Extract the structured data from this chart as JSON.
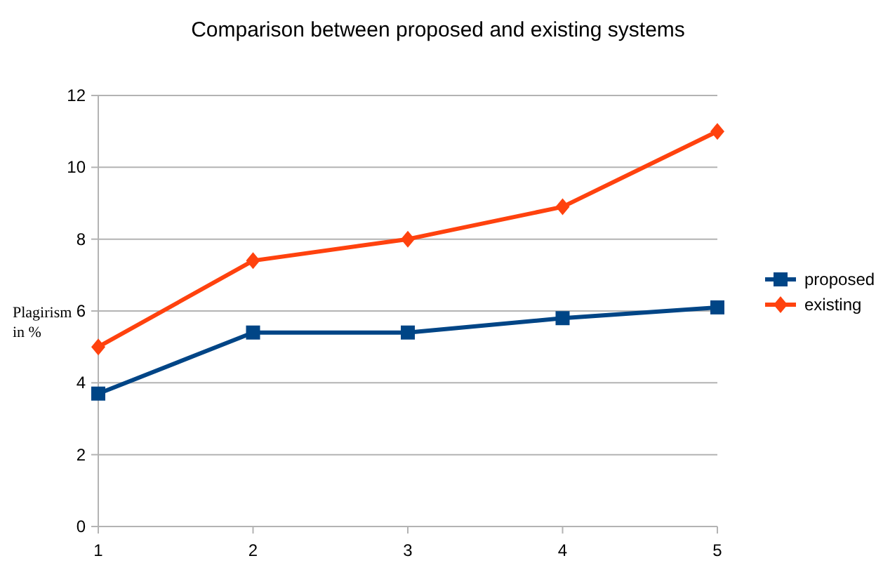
{
  "chart_data": {
    "type": "line",
    "title": "Comparison between proposed and existing systems",
    "ylabel": "Plagirism in %",
    "x": [
      1,
      2,
      3,
      4,
      5
    ],
    "xlim": [
      1,
      5
    ],
    "xticks": [
      1,
      2,
      3,
      4,
      5
    ],
    "ylim": [
      0,
      12
    ],
    "yticks": [
      0,
      2,
      4,
      6,
      8,
      10,
      12
    ],
    "grid": "y",
    "legend": "right",
    "series": [
      {
        "name": "proposed",
        "color": "#004586",
        "marker": "square",
        "values": [
          3.7,
          5.4,
          5.4,
          5.8,
          6.1
        ]
      },
      {
        "name": "existing",
        "color": "#ff420e",
        "marker": "diamond",
        "values": [
          5.0,
          7.4,
          8.0,
          8.9,
          11.0
        ]
      }
    ]
  }
}
